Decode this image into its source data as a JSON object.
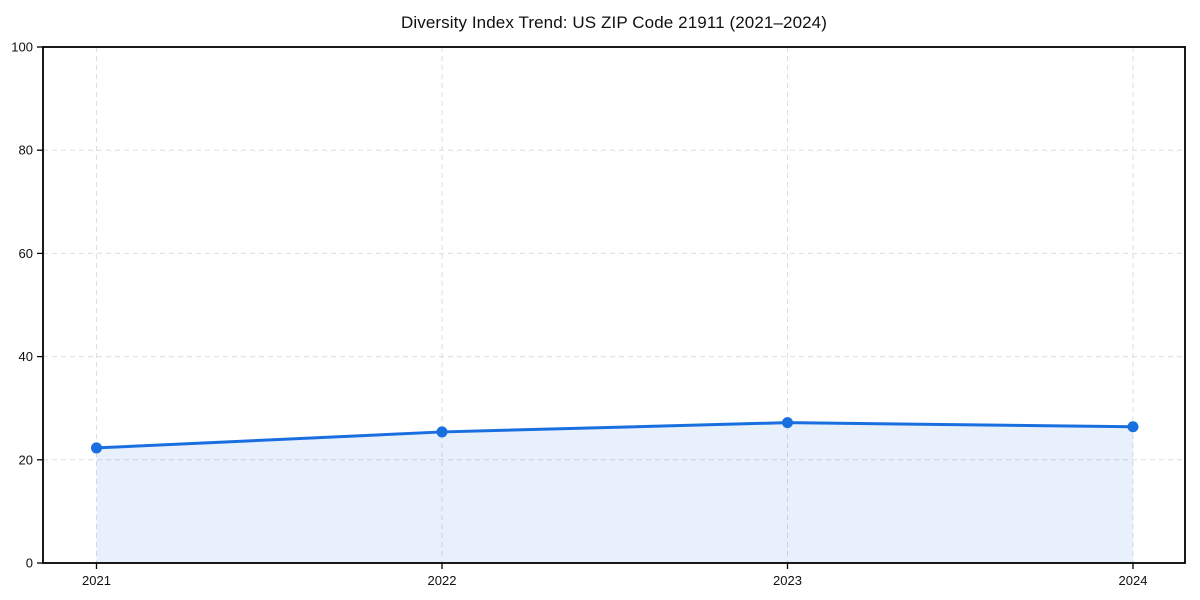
{
  "chart_data": {
    "type": "line",
    "title": "Diversity Index Trend: US ZIP Code 21911 (2021–2024)",
    "x": [
      "2021",
      "2022",
      "2023",
      "2024"
    ],
    "series": [
      {
        "name": "Diversity Index",
        "values": [
          22.3,
          25.4,
          27.2,
          26.4
        ]
      }
    ],
    "xlabel": "",
    "ylabel": "",
    "ylim": [
      0,
      100
    ],
    "yticks": [
      0,
      20,
      40,
      60,
      80,
      100
    ],
    "grid": true,
    "grid_style": "dashed",
    "legend": "none",
    "area_fill": true,
    "colors": {
      "line": "#1a6fe0",
      "marker": "#1a6fe0",
      "area": "rgba(26, 111, 224, 0.10)",
      "grid": "#dedede",
      "spine": "#000000",
      "tick": "#000000",
      "background": "#ffffff"
    }
  }
}
